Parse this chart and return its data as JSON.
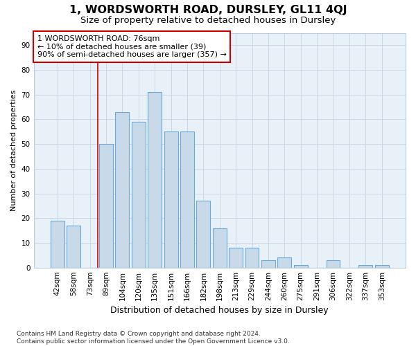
{
  "title": "1, WORDSWORTH ROAD, DURSLEY, GL11 4QJ",
  "subtitle": "Size of property relative to detached houses in Dursley",
  "xlabel": "Distribution of detached houses by size in Dursley",
  "ylabel": "Number of detached properties",
  "categories": [
    "42sqm",
    "58sqm",
    "73sqm",
    "89sqm",
    "104sqm",
    "120sqm",
    "135sqm",
    "151sqm",
    "166sqm",
    "182sqm",
    "198sqm",
    "213sqm",
    "229sqm",
    "244sqm",
    "260sqm",
    "275sqm",
    "291sqm",
    "306sqm",
    "322sqm",
    "337sqm",
    "353sqm"
  ],
  "values": [
    19,
    17,
    0,
    50,
    63,
    59,
    71,
    55,
    55,
    27,
    16,
    8,
    8,
    3,
    4,
    1,
    0,
    3,
    0,
    1,
    1
  ],
  "bar_color": "#c8d9ea",
  "bar_edge_color": "#6aaad4",
  "vline_x_index": 2,
  "vline_color": "#cc0000",
  "annotation_line1": "1 WORDSWORTH ROAD: 76sqm",
  "annotation_line2": "← 10% of detached houses are smaller (39)",
  "annotation_line3": "90% of semi-detached houses are larger (357) →",
  "annotation_box_facecolor": "#ffffff",
  "annotation_box_edgecolor": "#cc0000",
  "ylim": [
    0,
    95
  ],
  "yticks": [
    0,
    10,
    20,
    30,
    40,
    50,
    60,
    70,
    80,
    90
  ],
  "grid_color": "#c8d8e8",
  "bg_color": "#e8f0f8",
  "footer_line1": "Contains HM Land Registry data © Crown copyright and database right 2024.",
  "footer_line2": "Contains public sector information licensed under the Open Government Licence v3.0.",
  "title_fontsize": 11.5,
  "subtitle_fontsize": 9.5,
  "xlabel_fontsize": 9,
  "ylabel_fontsize": 8,
  "tick_fontsize": 7.5,
  "annotation_fontsize": 8,
  "footer_fontsize": 6.5
}
